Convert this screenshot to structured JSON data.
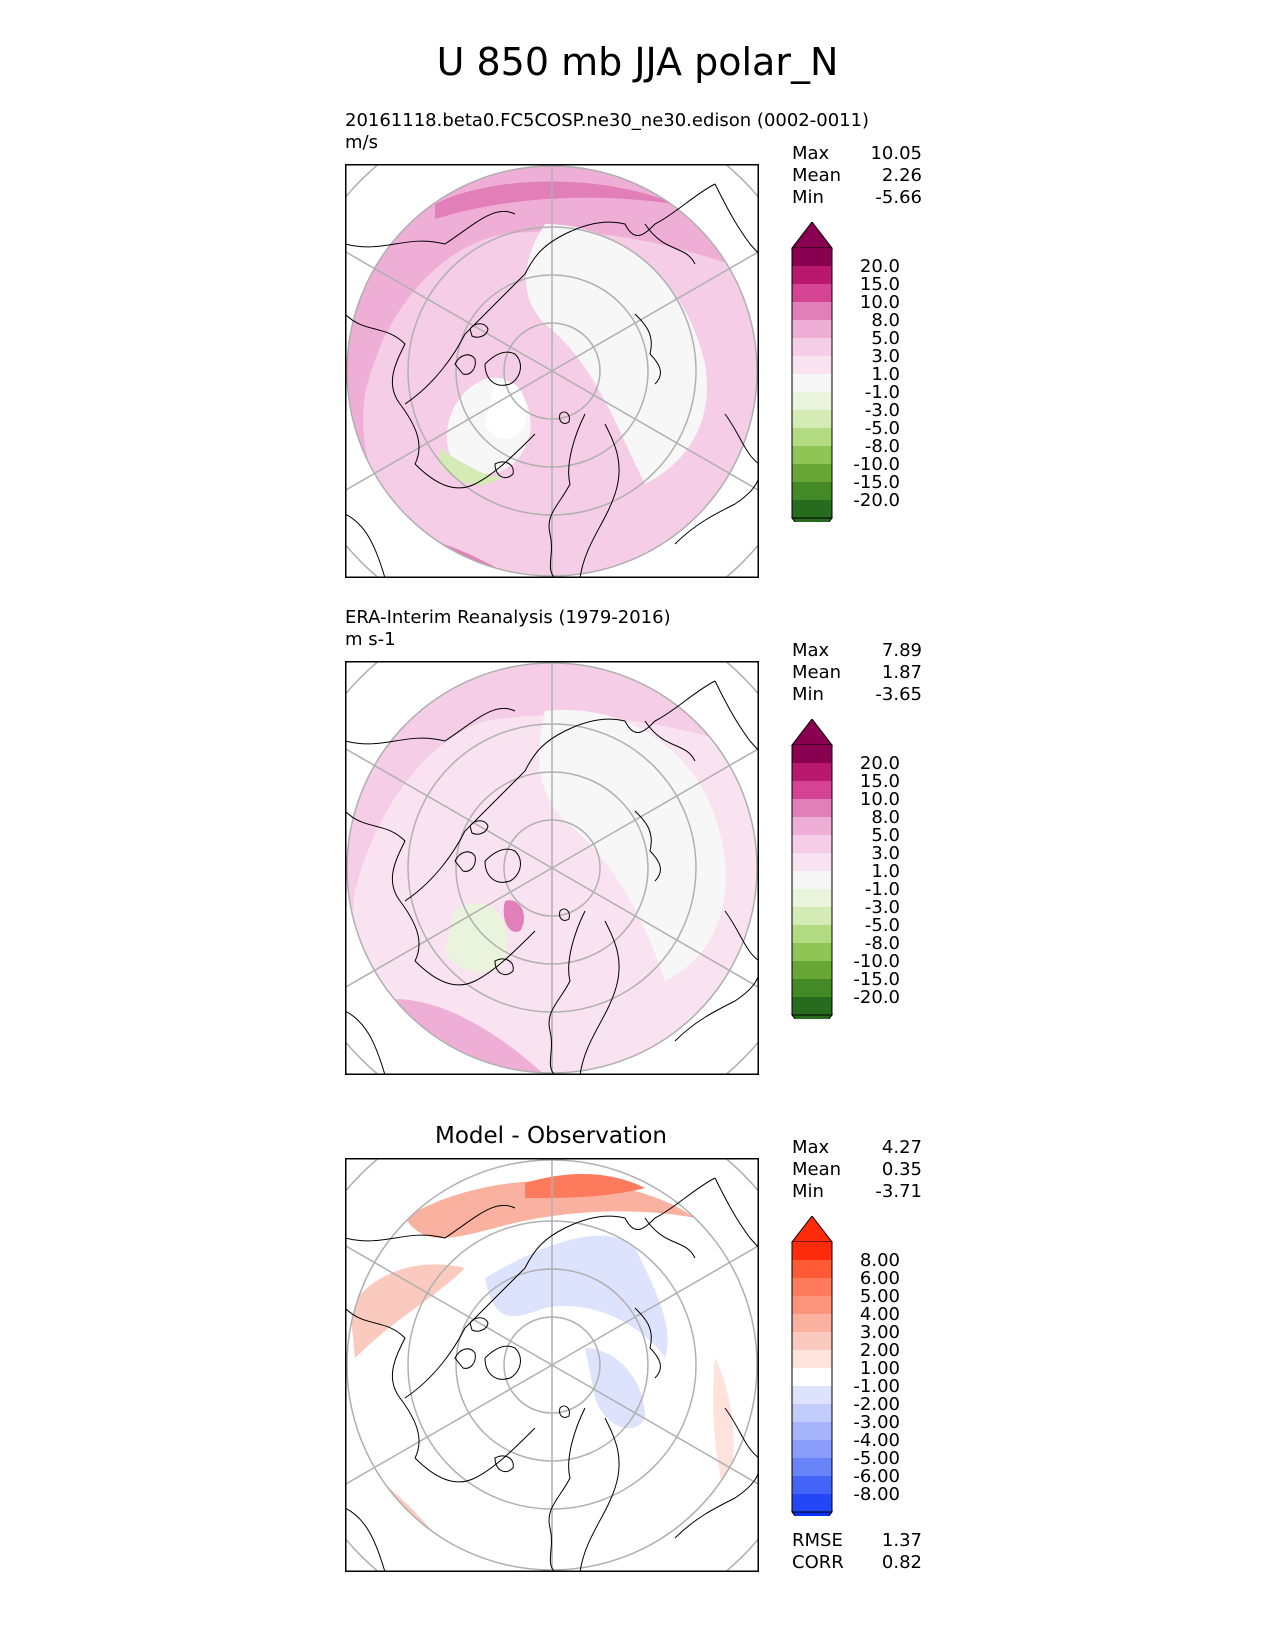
{
  "title": "U 850 mb JJA polar_N",
  "panels": [
    {
      "id": "model",
      "title_line1": "20161118.beta0.FC5COSP.ne30_ne30.edison (0002-0011)",
      "title_line2": "m/s",
      "stats": [
        {
          "label": "Max",
          "value": "10.05"
        },
        {
          "label": "Mean",
          "value": "2.26"
        },
        {
          "label": "Min",
          "value": "-5.66"
        }
      ],
      "colorbar": {
        "ticks": [
          "20.0",
          "15.0",
          "10.0",
          "8.0",
          "5.0",
          "3.0",
          "1.0",
          "-1.0",
          "-3.0",
          "-5.0",
          "-8.0",
          "-10.0",
          "-15.0",
          "-20.0"
        ],
        "colors": [
          "#8a0050",
          "#b8186e",
          "#d54395",
          "#e27fb8",
          "#eeaed6",
          "#f5cde6",
          "#f9e3f0",
          "#f7f7f7",
          "#eaf4dc",
          "#d4ebb5",
          "#b2db82",
          "#8ec554",
          "#67a634",
          "#438925",
          "#266b1e"
        ],
        "top_color": "#8a0050",
        "bottom_color": "#266b1e"
      }
    },
    {
      "id": "obs",
      "title_line1": "ERA-Interim Reanalysis (1979-2016)",
      "title_line2": "m s-1",
      "stats": [
        {
          "label": "Max",
          "value": "7.89"
        },
        {
          "label": "Mean",
          "value": "1.87"
        },
        {
          "label": "Min",
          "value": "-3.65"
        }
      ],
      "colorbar": {
        "ticks": [
          "20.0",
          "15.0",
          "10.0",
          "8.0",
          "5.0",
          "3.0",
          "1.0",
          "-1.0",
          "-3.0",
          "-5.0",
          "-8.0",
          "-10.0",
          "-15.0",
          "-20.0"
        ],
        "colors": [
          "#8a0050",
          "#b8186e",
          "#d54395",
          "#e27fb8",
          "#eeaed6",
          "#f5cde6",
          "#f9e3f0",
          "#f7f7f7",
          "#eaf4dc",
          "#d4ebb5",
          "#b2db82",
          "#8ec554",
          "#67a634",
          "#438925",
          "#266b1e"
        ],
        "top_color": "#8a0050",
        "bottom_color": "#266b1e"
      }
    },
    {
      "id": "diff",
      "title": "Model - Observation",
      "stats": [
        {
          "label": "Max",
          "value": "4.27"
        },
        {
          "label": "Mean",
          "value": "0.35"
        },
        {
          "label": "Min",
          "value": "-3.71"
        }
      ],
      "extra_stats": [
        {
          "label": "RMSE",
          "value": "1.37"
        },
        {
          "label": "CORR",
          "value": "0.82"
        }
      ],
      "colorbar": {
        "ticks": [
          "8.00",
          "6.00",
          "5.00",
          "4.00",
          "3.00",
          "2.00",
          "1.00",
          "-1.00",
          "-2.00",
          "-3.00",
          "-4.00",
          "-5.00",
          "-6.00",
          "-8.00"
        ],
        "colors": [
          "#fe2b0a",
          "#fe5a35",
          "#fd7a5c",
          "#fc947c",
          "#fbb19f",
          "#fbcabe",
          "#fde3dc",
          "#ffffff",
          "#dde3fd",
          "#c2ccfc",
          "#a6b5fb",
          "#8b9dfa",
          "#6983f9",
          "#4464f8",
          "#2347f7"
        ],
        "top_color": "#fe2b0a",
        "bottom_color": "#0a31f6"
      }
    }
  ],
  "chart_data": [
    {
      "type": "heatmap",
      "title": "20161118.beta0.FC5COSP.ne30_ne30.edison (0002-0011)",
      "units": "m/s",
      "projection": "north polar stereographic",
      "levels": [
        -20,
        -15,
        -10,
        -8,
        -5,
        -3,
        -1,
        1,
        3,
        5,
        8,
        10,
        15,
        20
      ],
      "max": 10.05,
      "mean": 2.26,
      "min": -5.66
    },
    {
      "type": "heatmap",
      "title": "ERA-Interim Reanalysis (1979-2016)",
      "units": "m s-1",
      "projection": "north polar stereographic",
      "levels": [
        -20,
        -15,
        -10,
        -8,
        -5,
        -3,
        -1,
        1,
        3,
        5,
        8,
        10,
        15,
        20
      ],
      "max": 7.89,
      "mean": 1.87,
      "min": -3.65
    },
    {
      "type": "heatmap",
      "title": "Model - Observation",
      "projection": "north polar stereographic",
      "levels": [
        -8,
        -6,
        -5,
        -4,
        -3,
        -2,
        -1,
        1,
        2,
        3,
        4,
        5,
        6,
        8
      ],
      "max": 4.27,
      "mean": 0.35,
      "min": -3.71,
      "rmse": 1.37,
      "corr": 0.82
    }
  ]
}
